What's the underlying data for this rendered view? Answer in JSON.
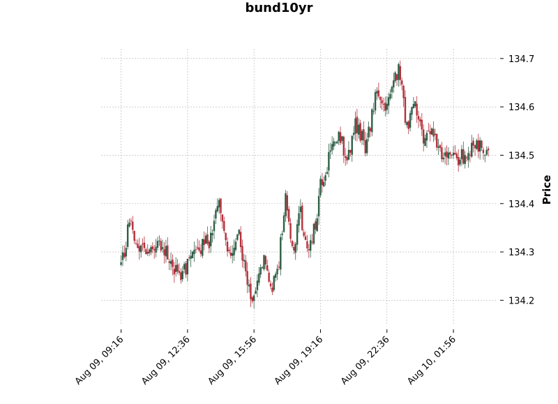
{
  "chart_data": {
    "type": "candlestick",
    "title": "bund10yr",
    "xlabel": "",
    "ylabel": "Price",
    "ylim": [
      134.15,
      134.72
    ],
    "y_ticks": [
      134.2,
      134.3,
      134.4,
      134.5,
      134.6,
      134.7
    ],
    "y_tick_labels": [
      "134.2",
      "134.3",
      "134.4",
      "134.5",
      "134.6",
      "134.7"
    ],
    "x_ticks": [
      "2024-08-09 09:16",
      "2024-08-09 12:36",
      "2024-08-09 15:56",
      "2024-08-09 19:16",
      "2024-08-09 22:36",
      "2024-08-10 01:56"
    ],
    "x_tick_labels": [
      "Aug 09, 09:16",
      "Aug 09, 12:36",
      "Aug 09, 15:56",
      "Aug 09, 19:16",
      "Aug 09, 22:36",
      "Aug 10, 01:56"
    ],
    "x_range": [
      "2024-08-09 08:16",
      "2024-08-10 04:06"
    ],
    "interval_minutes": 5,
    "grid": true,
    "colors": {
      "up": "#2e5e46",
      "down": "#b3303b",
      "grid": "#b0b0b0"
    },
    "anchors": [
      [
        "2024-08-09 09:16",
        134.27
      ],
      [
        "2024-08-09 09:41",
        134.36
      ],
      [
        "2024-08-09 10:06",
        134.32
      ],
      [
        "2024-08-09 10:41",
        134.29
      ],
      [
        "2024-08-09 11:16",
        134.32
      ],
      [
        "2024-08-09 11:46",
        134.27
      ],
      [
        "2024-08-09 12:11",
        134.25
      ],
      [
        "2024-08-09 12:36",
        134.27
      ],
      [
        "2024-08-09 13:06",
        134.31
      ],
      [
        "2024-08-09 13:41",
        134.32
      ],
      [
        "2024-08-09 14:11",
        134.41
      ],
      [
        "2024-08-09 14:41",
        134.3
      ],
      [
        "2024-08-09 15:11",
        134.34
      ],
      [
        "2024-08-09 15:36",
        134.22
      ],
      [
        "2024-08-09 15:56",
        134.21
      ],
      [
        "2024-08-09 16:26",
        134.3
      ],
      [
        "2024-08-09 16:46",
        134.22
      ],
      [
        "2024-08-09 17:11",
        134.28
      ],
      [
        "2024-08-09 17:31",
        134.42
      ],
      [
        "2024-08-09 17:51",
        134.3
      ],
      [
        "2024-08-09 18:16",
        134.38
      ],
      [
        "2024-08-09 18:36",
        134.29
      ],
      [
        "2024-08-09 19:01",
        134.36
      ],
      [
        "2024-08-09 19:16",
        134.44
      ],
      [
        "2024-08-09 19:46",
        134.5
      ],
      [
        "2024-08-09 20:11",
        134.55
      ],
      [
        "2024-08-09 20:36",
        134.48
      ],
      [
        "2024-08-09 21:01",
        134.57
      ],
      [
        "2024-08-09 21:31",
        134.52
      ],
      [
        "2024-08-09 22:06",
        134.63
      ],
      [
        "2024-08-09 22:36",
        134.6
      ],
      [
        "2024-08-09 23:11",
        134.68
      ],
      [
        "2024-08-09 23:36",
        134.56
      ],
      [
        "2024-08-10 00:01",
        134.6
      ],
      [
        "2024-08-10 00:31",
        134.53
      ],
      [
        "2024-08-10 00:56",
        134.55
      ],
      [
        "2024-08-10 01:26",
        134.5
      ],
      [
        "2024-08-10 01:56",
        134.49
      ],
      [
        "2024-08-10 02:31",
        134.5
      ],
      [
        "2024-08-10 03:06",
        134.52
      ],
      [
        "2024-08-10 03:41",
        134.51
      ]
    ]
  }
}
